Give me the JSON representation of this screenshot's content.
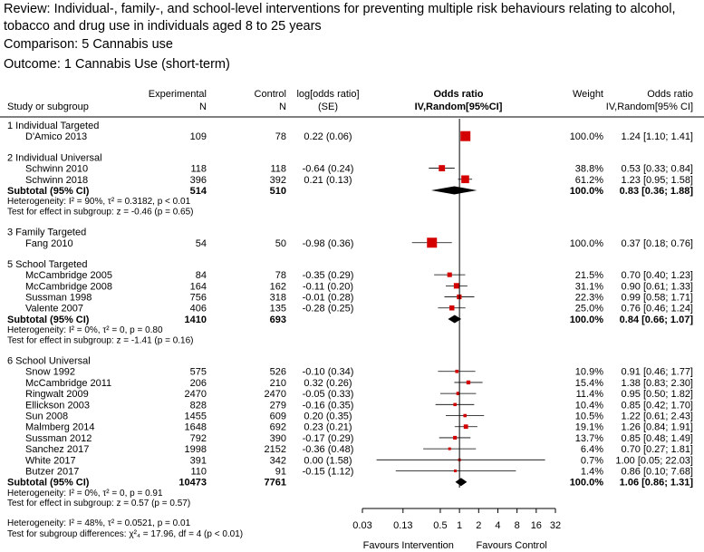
{
  "review_line1": "Review: Individual-, family-, and school-level interventions for preventing multiple risk behaviours relating to alcohol,",
  "review_line2": "tobacco and drug use in individuals aged 8 to 25 years",
  "comparison": "Comparison: 5 Cannabis use",
  "outcome": "Outcome: 1 Cannabis Use (short-term)",
  "colors": {
    "box": "#d40000",
    "diamond": "#000000",
    "line": "#000000"
  },
  "chart_data": {
    "type": "forest",
    "scale": "log",
    "xlim": [
      0.03,
      32
    ],
    "x_ticks": [
      0.03,
      0.13,
      0.5,
      1,
      2,
      4,
      8,
      16,
      32
    ],
    "x_tick_labels": [
      "0.03",
      "0.13",
      "0.5",
      "1",
      "2",
      "4",
      "8",
      "16",
      "32"
    ],
    "favours_left": "Favours Intervention",
    "favours_right": "Favours Control",
    "columns": {
      "study": "Study or subgroup",
      "exp_top": "Experimental",
      "exp_bottom": "N",
      "ctrl_top": "Control",
      "ctrl_bottom": "N",
      "log_top": "log[odds ratio]",
      "log_bottom": "(SE)",
      "or_top": "Odds ratio",
      "or_bottom": "IV,Random[95%CI]",
      "weight": "Weight",
      "ci_top": "Odds ratio",
      "ci_bottom": "IV,Random[95% CI]"
    },
    "overall_heterogeneity": "Heterogeneity: I² = 48%, τ² = 0.0521, p = 0.01",
    "subgroup_test": "Test for subgroup differences: χ²₄ = 17.96, df = 4 (p < 0.01)",
    "groups": [
      {
        "title": "1 Individual Targeted",
        "studies": [
          {
            "name": "D'Amico 2013",
            "exp": "109",
            "ctrl": "78",
            "logse": "0.22 (0.06)",
            "or": 1.24,
            "lo": 1.1,
            "hi": 1.41,
            "weight": "100.0%",
            "ci": "1.24 [1.10;  1.41]"
          }
        ]
      },
      {
        "title": "2 Individual Universal",
        "studies": [
          {
            "name": "Schwinn 2010",
            "exp": "118",
            "ctrl": "118",
            "logse": "-0.64 (0.24)",
            "or": 0.53,
            "lo": 0.33,
            "hi": 0.84,
            "weight": "38.8%",
            "ci": "0.53 [0.33;  0.84]"
          },
          {
            "name": "Schwinn 2018",
            "exp": "396",
            "ctrl": "392",
            "logse": "0.21 (0.13)",
            "or": 1.23,
            "lo": 0.95,
            "hi": 1.58,
            "weight": "61.2%",
            "ci": "1.23 [0.95;  1.58]"
          }
        ],
        "subtotal": {
          "label": "Subtotal (95% CI)",
          "exp": "514",
          "ctrl": "510",
          "or": 0.83,
          "lo": 0.36,
          "hi": 1.88,
          "weight": "100.0%",
          "ci": "0.83 [0.36;  1.88]"
        },
        "heterogeneity": "Heterogeneity: I² = 90%, τ² = 0.3182, p < 0.01",
        "effect_test": "Test for effect in subgroup: z = -0.46 (p = 0.65)"
      },
      {
        "title": "3 Family Targeted",
        "studies": [
          {
            "name": "Fang 2010",
            "exp": "54",
            "ctrl": "50",
            "logse": "-0.98 (0.36)",
            "or": 0.37,
            "lo": 0.18,
            "hi": 0.76,
            "weight": "100.0%",
            "ci": "0.37 [0.18;  0.76]"
          }
        ]
      },
      {
        "title": "5 School Targeted",
        "studies": [
          {
            "name": "McCambridge 2005",
            "exp": "84",
            "ctrl": "78",
            "logse": "-0.35 (0.29)",
            "or": 0.7,
            "lo": 0.4,
            "hi": 1.23,
            "weight": "21.5%",
            "ci": "0.70 [0.40;  1.23]"
          },
          {
            "name": "McCambridge 2008",
            "exp": "164",
            "ctrl": "162",
            "logse": "-0.11 (0.20)",
            "or": 0.9,
            "lo": 0.61,
            "hi": 1.33,
            "weight": "31.1%",
            "ci": "0.90 [0.61;  1.33]"
          },
          {
            "name": "Sussman 1998",
            "exp": "756",
            "ctrl": "318",
            "logse": "-0.01 (0.28)",
            "or": 0.99,
            "lo": 0.58,
            "hi": 1.71,
            "weight": "22.3%",
            "ci": "0.99 [0.58;  1.71]"
          },
          {
            "name": "Valente 2007",
            "exp": "406",
            "ctrl": "135",
            "logse": "-0.28 (0.25)",
            "or": 0.76,
            "lo": 0.46,
            "hi": 1.24,
            "weight": "25.0%",
            "ci": "0.76 [0.46;  1.24]"
          }
        ],
        "subtotal": {
          "label": "Subtotal (95% CI)",
          "exp": "1410",
          "ctrl": "693",
          "or": 0.84,
          "lo": 0.66,
          "hi": 1.07,
          "weight": "100.0%",
          "ci": "0.84 [0.66;  1.07]"
        },
        "heterogeneity": "Heterogeneity: I² = 0%, τ² = 0, p = 0.80",
        "effect_test": "Test for effect in subgroup: z = -1.41 (p = 0.16)"
      },
      {
        "title": "6 School Universal",
        "studies": [
          {
            "name": "Snow 1992",
            "exp": "575",
            "ctrl": "526",
            "logse": "-0.10 (0.34)",
            "or": 0.91,
            "lo": 0.46,
            "hi": 1.77,
            "weight": "10.9%",
            "ci": "0.91 [0.46;  1.77]"
          },
          {
            "name": "McCambridge 2011",
            "exp": "206",
            "ctrl": "210",
            "logse": "0.32 (0.26)",
            "or": 1.38,
            "lo": 0.83,
            "hi": 2.3,
            "weight": "15.4%",
            "ci": "1.38 [0.83;  2.30]"
          },
          {
            "name": "Ringwalt 2009",
            "exp": "2470",
            "ctrl": "2470",
            "logse": "-0.05 (0.33)",
            "or": 0.95,
            "lo": 0.5,
            "hi": 1.82,
            "weight": "11.4%",
            "ci": "0.95 [0.50;  1.82]"
          },
          {
            "name": "Ellickson 2003",
            "exp": "828",
            "ctrl": "279",
            "logse": "-0.16 (0.35)",
            "or": 0.85,
            "lo": 0.42,
            "hi": 1.7,
            "weight": "10.4%",
            "ci": "0.85 [0.42;  1.70]"
          },
          {
            "name": "Sun 2008",
            "exp": "1455",
            "ctrl": "609",
            "logse": "0.20 (0.35)",
            "or": 1.22,
            "lo": 0.61,
            "hi": 2.43,
            "weight": "10.5%",
            "ci": "1.22 [0.61;  2.43]"
          },
          {
            "name": "Malmberg 2014",
            "exp": "1648",
            "ctrl": "692",
            "logse": "0.23 (0.21)",
            "or": 1.26,
            "lo": 0.84,
            "hi": 1.91,
            "weight": "19.1%",
            "ci": "1.26 [0.84;  1.91]"
          },
          {
            "name": "Sussman 2012",
            "exp": "792",
            "ctrl": "390",
            "logse": "-0.17 (0.29)",
            "or": 0.85,
            "lo": 0.48,
            "hi": 1.49,
            "weight": "13.7%",
            "ci": "0.85 [0.48;  1.49]"
          },
          {
            "name": "Sanchez 2017",
            "exp": "1998",
            "ctrl": "2152",
            "logse": "-0.36 (0.48)",
            "or": 0.7,
            "lo": 0.27,
            "hi": 1.81,
            "weight": "6.4%",
            "ci": "0.70 [0.27;  1.81]"
          },
          {
            "name": "White 2017",
            "exp": "391",
            "ctrl": "342",
            "logse": "0.00 (1.58)",
            "or": 1.0,
            "lo": 0.05,
            "hi": 22.03,
            "weight": "0.7%",
            "ci": "1.00 [0.05; 22.03]"
          },
          {
            "name": "Butzer 2017",
            "exp": "110",
            "ctrl": "91",
            "logse": "-0.15 (1.12)",
            "or": 0.86,
            "lo": 0.1,
            "hi": 7.68,
            "weight": "1.4%",
            "ci": "0.86 [0.10;  7.68]"
          }
        ],
        "subtotal": {
          "label": "Subtotal (95% CI)",
          "exp": "10473",
          "ctrl": "7761",
          "or": 1.06,
          "lo": 0.86,
          "hi": 1.31,
          "weight": "100.0%",
          "ci": "1.06 [0.86;  1.31]"
        },
        "heterogeneity": "Heterogeneity: I² = 0%, τ² = 0, p = 0.91",
        "effect_test": "Test for effect in subgroup: z = 0.57 (p = 0.57)"
      }
    ]
  }
}
